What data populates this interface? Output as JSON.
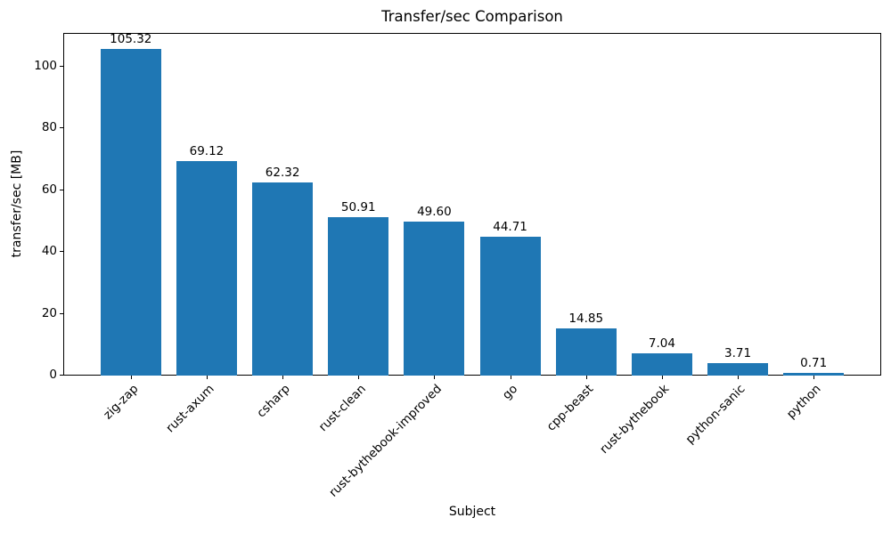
{
  "chart_data": {
    "type": "bar",
    "title": "Transfer/sec Comparison",
    "xlabel": "Subject",
    "ylabel": "transfer/sec [MB]",
    "categories": [
      "zig-zap",
      "rust-axum",
      "csharp",
      "rust-clean",
      "rust-bythebook-improved",
      "go",
      "cpp-beast",
      "rust-bythebook",
      "python-sanic",
      "python"
    ],
    "values": [
      105.32,
      69.12,
      62.32,
      50.91,
      49.6,
      44.71,
      14.85,
      7.04,
      3.71,
      0.71
    ],
    "value_labels": [
      "105.32",
      "69.12",
      "62.32",
      "50.91",
      "49.60",
      "44.71",
      "14.85",
      "7.04",
      "3.71",
      "0.71"
    ],
    "ylim": [
      0,
      110.59
    ],
    "yticks": [
      0,
      20,
      40,
      60,
      80,
      100
    ],
    "bar_color": "#1f77b4",
    "axis_color": "#000000",
    "grid": false,
    "x_tick_rotation_deg": 45,
    "legend_position": "none"
  }
}
